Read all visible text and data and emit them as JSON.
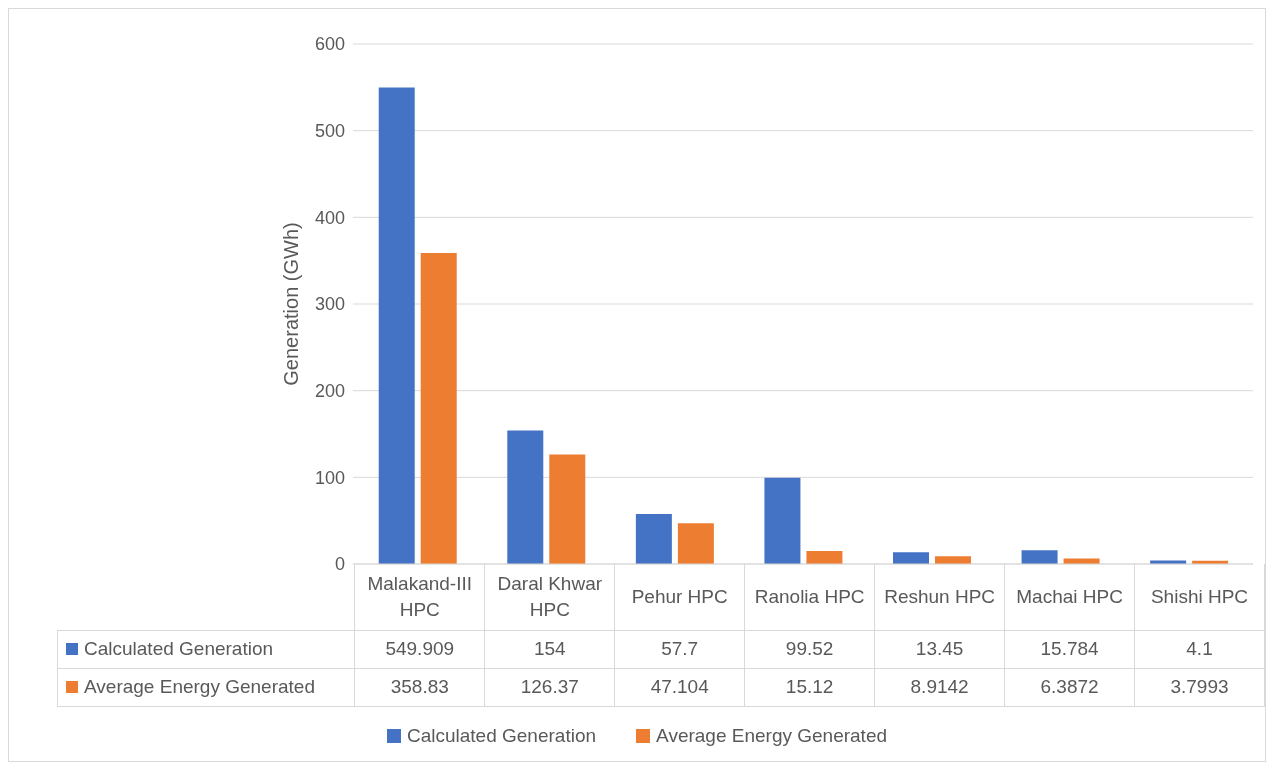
{
  "chart_data": {
    "type": "bar",
    "ylabel": "Generation (GWh)",
    "categories": [
      "Malakand-III HPC",
      "Daral Khwar HPC",
      "Pehur HPC",
      "Ranolia HPC",
      "Reshun HPC",
      "Machai HPC",
      "Shishi HPC"
    ],
    "series": [
      {
        "name": "Calculated Generation",
        "color": "#4472c4",
        "values": [
          549.909,
          154,
          57.7,
          99.52,
          13.45,
          15.784,
          4.1
        ]
      },
      {
        "name": "Average Energy Generated",
        "color": "#ed7d31",
        "values": [
          358.83,
          126.37,
          47.104,
          15.12,
          8.9142,
          6.3872,
          3.7993
        ]
      }
    ],
    "ylim": [
      0,
      600
    ],
    "yticks": [
      0,
      100,
      200,
      300,
      400,
      500,
      600
    ],
    "grid": "y",
    "legend": "bottom",
    "data_labels": true
  }
}
